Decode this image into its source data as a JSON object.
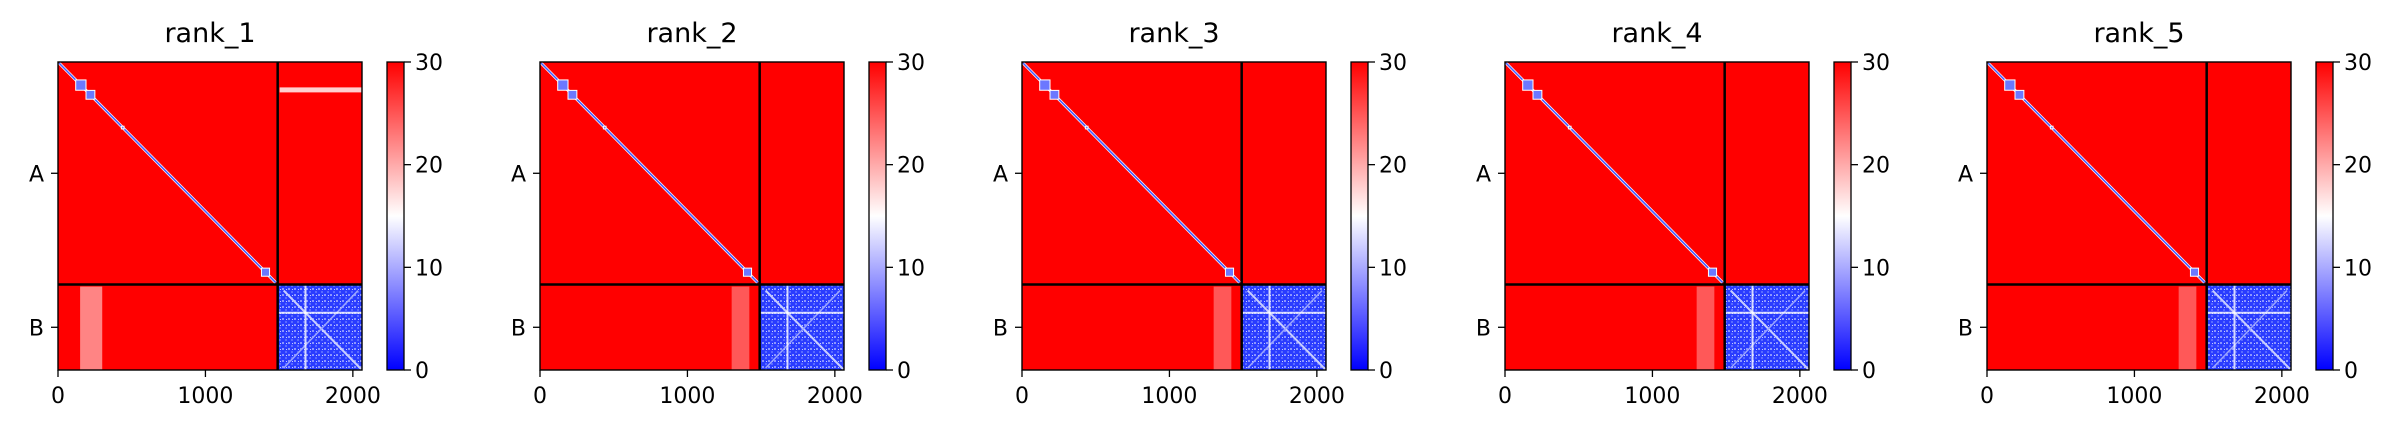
{
  "chart_data": [
    {
      "type": "heatmap",
      "title": "rank_1",
      "xticks": [
        0,
        1000,
        2000
      ],
      "yticks": [
        "A",
        "B"
      ],
      "xlim": [
        0,
        2062
      ],
      "chain_boundary": 1490,
      "colorbar": {
        "min": 0,
        "max": 30,
        "ticks": [
          0,
          10,
          20,
          30
        ],
        "colormap": "bwr"
      }
    },
    {
      "type": "heatmap",
      "title": "rank_2",
      "xticks": [
        0,
        1000,
        2000
      ],
      "yticks": [
        "A",
        "B"
      ],
      "xlim": [
        0,
        2062
      ],
      "chain_boundary": 1490,
      "colorbar": {
        "min": 0,
        "max": 30,
        "ticks": [
          0,
          10,
          20,
          30
        ],
        "colormap": "bwr"
      }
    },
    {
      "type": "heatmap",
      "title": "rank_3",
      "xticks": [
        0,
        1000,
        2000
      ],
      "yticks": [
        "A",
        "B"
      ],
      "xlim": [
        0,
        2062
      ],
      "chain_boundary": 1490,
      "colorbar": {
        "min": 0,
        "max": 30,
        "ticks": [
          0,
          10,
          20,
          30
        ],
        "colormap": "bwr"
      }
    },
    {
      "type": "heatmap",
      "title": "rank_4",
      "xticks": [
        0,
        1000,
        2000
      ],
      "yticks": [
        "A",
        "B"
      ],
      "xlim": [
        0,
        2062
      ],
      "chain_boundary": 1490,
      "colorbar": {
        "min": 0,
        "max": 30,
        "ticks": [
          0,
          10,
          20,
          30
        ],
        "colormap": "bwr"
      }
    },
    {
      "type": "heatmap",
      "title": "rank_5",
      "xticks": [
        0,
        1000,
        2000
      ],
      "yticks": [
        "A",
        "B"
      ],
      "xlim": [
        0,
        2062
      ],
      "chain_boundary": 1490,
      "colorbar": {
        "min": 0,
        "max": 30,
        "ticks": [
          0,
          10,
          20,
          30
        ],
        "colormap": "bwr"
      }
    }
  ],
  "colors": {
    "high": "#ff0000",
    "mid": "#ffffff",
    "low": "#0000ff",
    "border": "#000000"
  }
}
